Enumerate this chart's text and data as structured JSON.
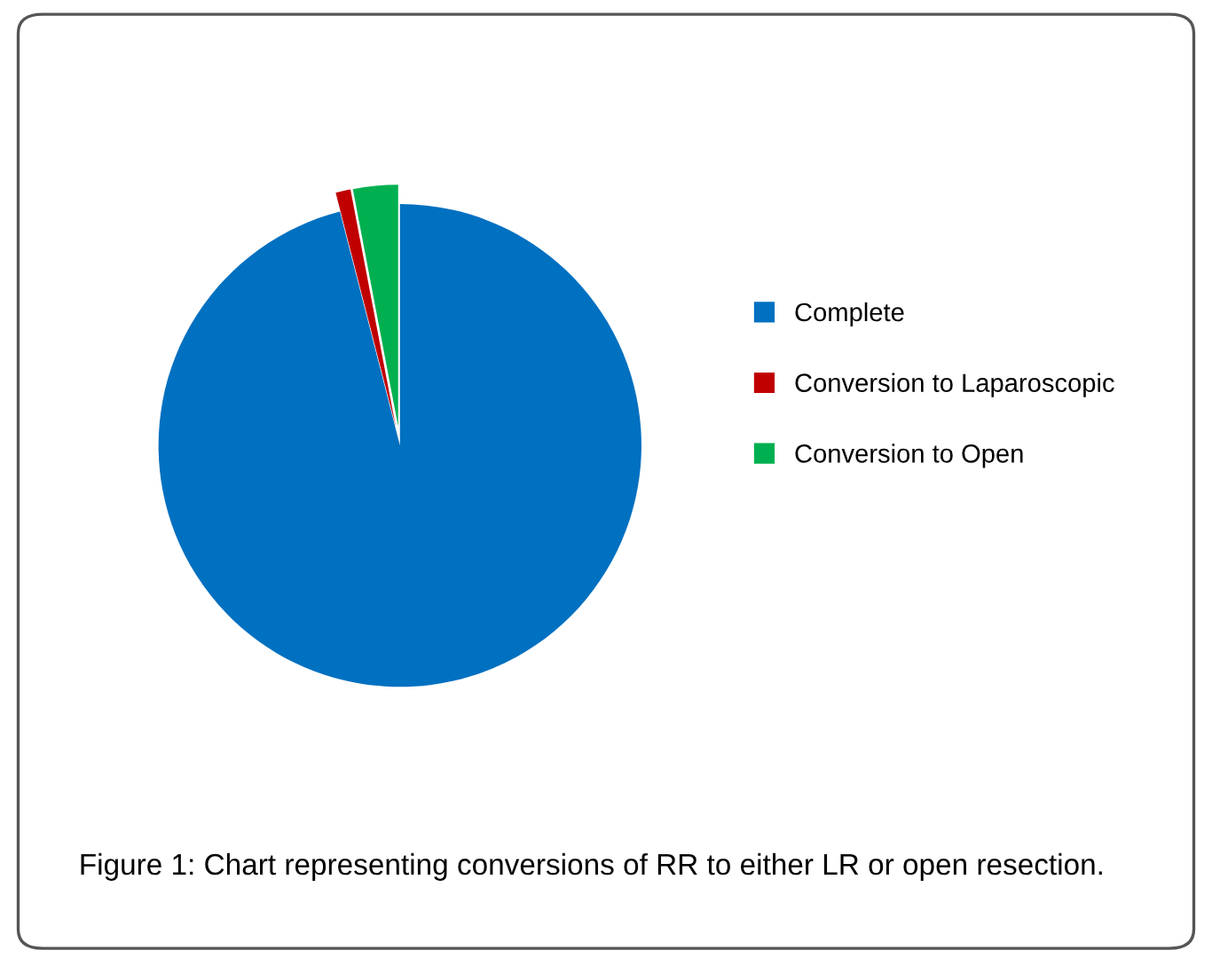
{
  "chart_data": {
    "type": "pie",
    "categories": [
      "Complete",
      "Conversion to Laparoscopic",
      "Conversion to Open"
    ],
    "values": [
      96,
      1,
      3
    ],
    "colors": [
      "#0070c0",
      "#c00000",
      "#00b050"
    ],
    "legend": "right",
    "annotations": [
      "Figure 1: Chart representing conversions of RR to either LR or open resection."
    ]
  }
}
